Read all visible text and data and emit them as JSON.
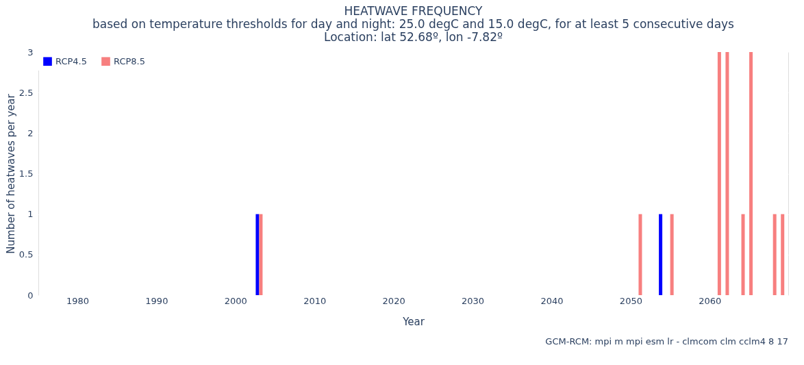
{
  "chart_data": {
    "type": "bar",
    "title": "HEATWAVE FREQUENCY",
    "subtitle": [
      "based on temperature thresholds for day and night: 25.0 degC and 15.0 degC, for at least 5 consecutive days",
      "Location: lat 52.68º, lon -7.82º"
    ],
    "xlabel": "Year",
    "ylabel": "Number of heatwaves per year",
    "series": [
      {
        "name": "RCP4.5",
        "color": "#0000ff",
        "x": [
          2003,
          2054
        ],
        "values": [
          1,
          1
        ]
      },
      {
        "name": "RCP8.5",
        "color": "#f77f7f",
        "x": [
          2003,
          2051,
          2055,
          2061,
          2062,
          2064,
          2065,
          2068,
          2069
        ],
        "values": [
          1,
          1,
          1,
          3,
          3,
          1,
          3,
          1,
          1
        ]
      }
    ],
    "xlim": [
      1975.5,
      2069.5
    ],
    "xticks": [
      1980,
      1990,
      2000,
      2010,
      2020,
      2030,
      2040,
      2050,
      2060
    ],
    "ylim": [
      0,
      3
    ],
    "yticks": [
      0,
      0.5,
      1,
      1.5,
      2,
      2.5,
      3
    ],
    "grid": "y",
    "legend": "top left",
    "annotations": [
      "GCM-RCM: mpi m mpi esm lr - clmcom clm cclm4 8 17"
    ]
  }
}
